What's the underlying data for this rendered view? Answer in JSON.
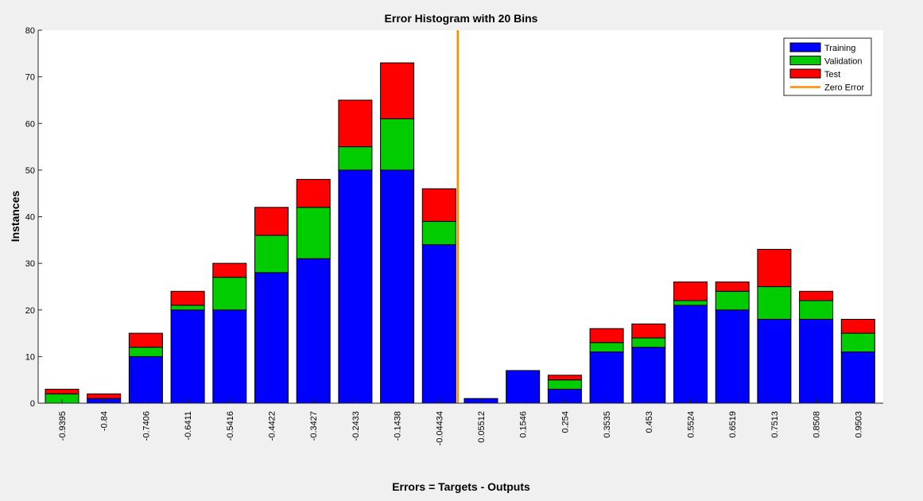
{
  "chart_data": {
    "type": "bar",
    "stacked": true,
    "title": "Error Histogram with 20 Bins",
    "xlabel": "Errors = Targets - Outputs",
    "ylabel": "Instances",
    "ylim": [
      0,
      80
    ],
    "yticks": [
      0,
      10,
      20,
      30,
      40,
      50,
      60,
      70,
      80
    ],
    "grid": false,
    "legend_position": "top-right",
    "categories": [
      "-0.9395",
      "-0.84",
      "-0.7406",
      "-0.6411",
      "-0.5416",
      "-0.4422",
      "-0.3427",
      "-0.2433",
      "-0.1438",
      "-0.04434",
      "0.05512",
      "0.1546",
      "0.254",
      "0.3535",
      "0.453",
      "0.5524",
      "0.6519",
      "0.7513",
      "0.8508",
      "0.9503"
    ],
    "series": [
      {
        "name": "Training",
        "color": "#0000ff",
        "values": [
          0,
          1,
          10,
          20,
          20,
          28,
          31,
          50,
          50,
          34,
          1,
          7,
          3,
          11,
          12,
          21,
          20,
          18,
          18,
          11
        ]
      },
      {
        "name": "Validation",
        "color": "#00cc00",
        "values": [
          2,
          0,
          2,
          1,
          7,
          8,
          11,
          5,
          11,
          5,
          0,
          0,
          2,
          2,
          2,
          1,
          4,
          7,
          4,
          4
        ]
      },
      {
        "name": "Test",
        "color": "#ff0000",
        "values": [
          1,
          1,
          3,
          3,
          3,
          6,
          6,
          10,
          12,
          7,
          0,
          0,
          1,
          3,
          3,
          4,
          2,
          8,
          2,
          3
        ]
      }
    ],
    "reference_line": {
      "name": "Zero Error",
      "x": 0,
      "color": "#ff8c00"
    }
  }
}
